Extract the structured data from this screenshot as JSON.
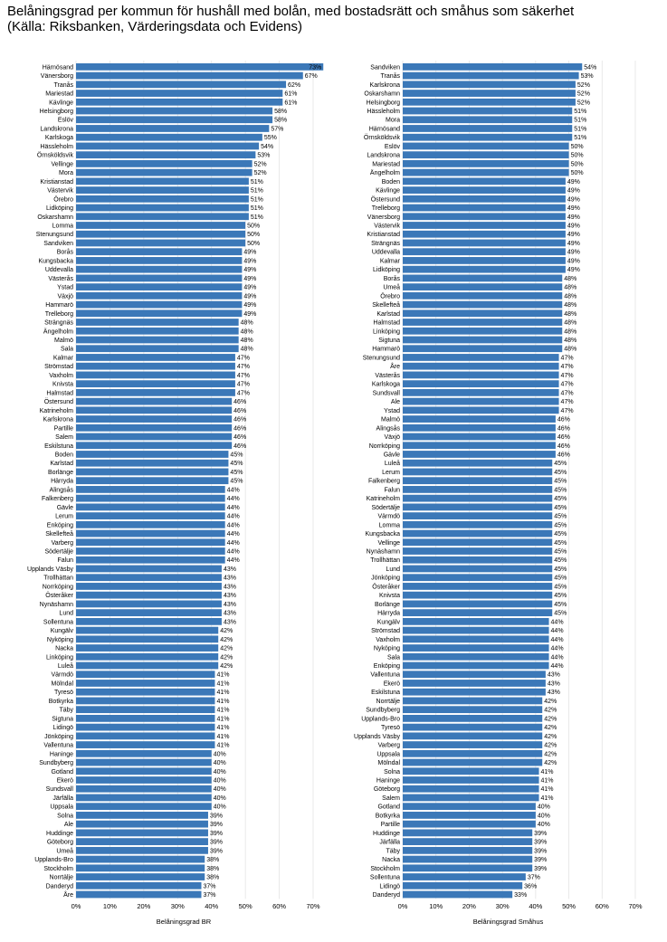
{
  "title_line1": "Belåningsgrad per kommun för hushåll med bolån, med bostadsrätt och småhus som säkerhet",
  "title_line2": "(Källa: Riksbanken, Värderingsdata och Evidens)",
  "chart_data": [
    {
      "type": "bar",
      "orientation": "horizontal",
      "xlabel": "Belåningsgrad BR",
      "xlim": [
        0,
        70
      ],
      "xticks": [
        "0%",
        "10%",
        "20%",
        "30%",
        "40%",
        "50%",
        "60%",
        "70%"
      ],
      "color": "#3b78b8",
      "value_suffix": "%",
      "categories": [
        "Härnösand",
        "Vänersborg",
        "Tranås",
        "Mariestad",
        "Kävlinge",
        "Helsingborg",
        "Eslöv",
        "Landskrona",
        "Karlskoga",
        "Hässleholm",
        "Örnsköldsvik",
        "Vellinge",
        "Mora",
        "Kristianstad",
        "Västervik",
        "Örebro",
        "Lidköping",
        "Oskarshamn",
        "Lomma",
        "Stenungsund",
        "Sandviken",
        "Borås",
        "Kungsbacka",
        "Uddevalla",
        "Västerås",
        "Ystad",
        "Växjö",
        "Hammarö",
        "Trelleborg",
        "Strängnäs",
        "Ängelholm",
        "Malmö",
        "Sala",
        "Kalmar",
        "Strömstad",
        "Vaxholm",
        "Knivsta",
        "Halmstad",
        "Östersund",
        "Katrineholm",
        "Karlskrona",
        "Partille",
        "Salem",
        "Eskilstuna",
        "Boden",
        "Karlstad",
        "Borlänge",
        "Härryda",
        "Alingsås",
        "Falkenberg",
        "Gävle",
        "Lerum",
        "Enköping",
        "Skellefteå",
        "Varberg",
        "Södertälje",
        "Falun",
        "Upplands Väsby",
        "Trollhättan",
        "Norrköping",
        "Österåker",
        "Nynäshamn",
        "Lund",
        "Sollentuna",
        "Kungälv",
        "Nyköping",
        "Nacka",
        "Linköping",
        "Luleå",
        "Värmdö",
        "Mölndal",
        "Tyresö",
        "Botkyrka",
        "Täby",
        "Sigtuna",
        "Lidingö",
        "Jönköping",
        "Vallentuna",
        "Haninge",
        "Sundbyberg",
        "Gotland",
        "Ekerö",
        "Sundsvall",
        "Järfälla",
        "Uppsala",
        "Solna",
        "Ale",
        "Huddinge",
        "Göteborg",
        "Umeå",
        "Upplands-Bro",
        "Stockholm",
        "Norrtälje",
        "Danderyd",
        "Åre"
      ],
      "values": [
        73,
        67,
        62,
        61,
        61,
        58,
        58,
        57,
        55,
        54,
        53,
        52,
        52,
        51,
        51,
        51,
        51,
        51,
        50,
        50,
        50,
        49,
        49,
        49,
        49,
        49,
        49,
        49,
        49,
        48,
        48,
        48,
        48,
        47,
        47,
        47,
        47,
        47,
        46,
        46,
        46,
        46,
        46,
        46,
        45,
        45,
        45,
        45,
        44,
        44,
        44,
        44,
        44,
        44,
        44,
        44,
        44,
        43,
        43,
        43,
        43,
        43,
        43,
        43,
        42,
        42,
        42,
        42,
        42,
        41,
        41,
        41,
        41,
        41,
        41,
        41,
        41,
        41,
        40,
        40,
        40,
        40,
        40,
        40,
        40,
        39,
        39,
        39,
        39,
        39,
        38,
        38,
        38,
        37,
        37
      ]
    },
    {
      "type": "bar",
      "orientation": "horizontal",
      "xlabel": "Belåningsgrad Småhus",
      "xlim": [
        0,
        70
      ],
      "xticks": [
        "0%",
        "10%",
        "20%",
        "30%",
        "40%",
        "50%",
        "60%",
        "70%"
      ],
      "color": "#3b78b8",
      "value_suffix": "%",
      "categories": [
        "Sandviken",
        "Tranås",
        "Karlskrona",
        "Oskarshamn",
        "Helsingborg",
        "Hässleholm",
        "Mora",
        "Härnösand",
        "Örnsköldsvik",
        "Eslöv",
        "Landskrona",
        "Mariestad",
        "Ängelholm",
        "Boden",
        "Kävlinge",
        "Östersund",
        "Trelleborg",
        "Vänersborg",
        "Västervik",
        "Kristianstad",
        "Strängnäs",
        "Uddevalla",
        "Kalmar",
        "Lidköping",
        "Borås",
        "Umeå",
        "Örebro",
        "Skellefteå",
        "Karlstad",
        "Halmstad",
        "Linköping",
        "Sigtuna",
        "Hammarö",
        "Stenungsund",
        "Åre",
        "Västerås",
        "Karlskoga",
        "Sundsvall",
        "Ale",
        "Ystad",
        "Malmö",
        "Alingsås",
        "Växjö",
        "Norrköping",
        "Gävle",
        "Luleå",
        "Lerum",
        "Falkenberg",
        "Falun",
        "Katrineholm",
        "Södertälje",
        "Värmdö",
        "Lomma",
        "Kungsbacka",
        "Vellinge",
        "Nynäshamn",
        "Trollhättan",
        "Lund",
        "Jönköping",
        "Österåker",
        "Knivsta",
        "Borlänge",
        "Härryda",
        "Kungälv",
        "Strömstad",
        "Vaxholm",
        "Nyköping",
        "Sala",
        "Enköping",
        "Vallentuna",
        "Ekerö",
        "Eskilstuna",
        "Norrtälje",
        "Sundbyberg",
        "Upplands-Bro",
        "Tyresö",
        "Upplands Väsby",
        "Varberg",
        "Uppsala",
        "Mölndal",
        "Solna",
        "Haninge",
        "Göteborg",
        "Salem",
        "Gotland",
        "Botkyrka",
        "Partille",
        "Huddinge",
        "Järfälla",
        "Täby",
        "Nacka",
        "Stockholm",
        "Sollentuna",
        "Lidingö",
        "Danderyd"
      ],
      "values": [
        54,
        53,
        52,
        52,
        52,
        51,
        51,
        51,
        51,
        50,
        50,
        50,
        50,
        49,
        49,
        49,
        49,
        49,
        49,
        49,
        49,
        49,
        49,
        49,
        48,
        48,
        48,
        48,
        48,
        48,
        48,
        48,
        48,
        47,
        47,
        47,
        47,
        47,
        47,
        47,
        46,
        46,
        46,
        46,
        46,
        45,
        45,
        45,
        45,
        45,
        45,
        45,
        45,
        45,
        45,
        45,
        45,
        45,
        45,
        45,
        45,
        45,
        45,
        44,
        44,
        44,
        44,
        44,
        44,
        43,
        43,
        43,
        42,
        42,
        42,
        42,
        42,
        42,
        42,
        42,
        41,
        41,
        41,
        41,
        40,
        40,
        40,
        39,
        39,
        39,
        39,
        39,
        37,
        36,
        33
      ]
    }
  ]
}
